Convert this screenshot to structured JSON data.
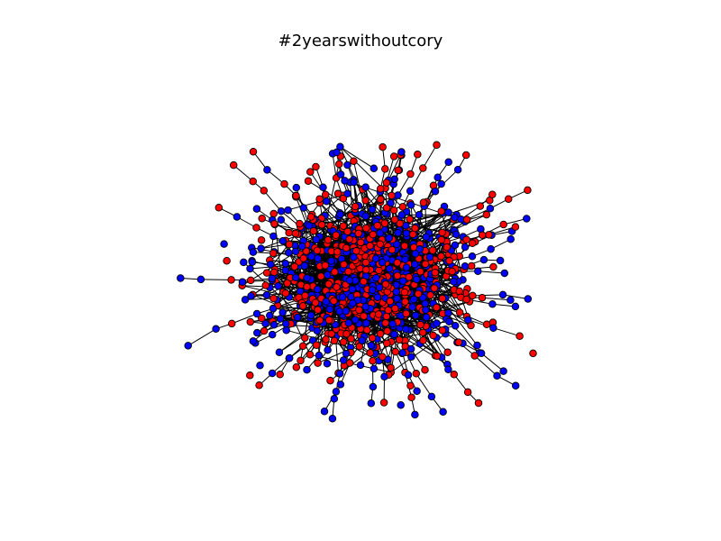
{
  "figure": {
    "title": "#2yearswithoutcory"
  },
  "graph": {
    "layout": "force-directed",
    "node_colors": [
      "#ff0000",
      "#0000ff"
    ],
    "node_outline_color": "#000000",
    "edge_color": "#000000",
    "axes_visible": false
  }
}
